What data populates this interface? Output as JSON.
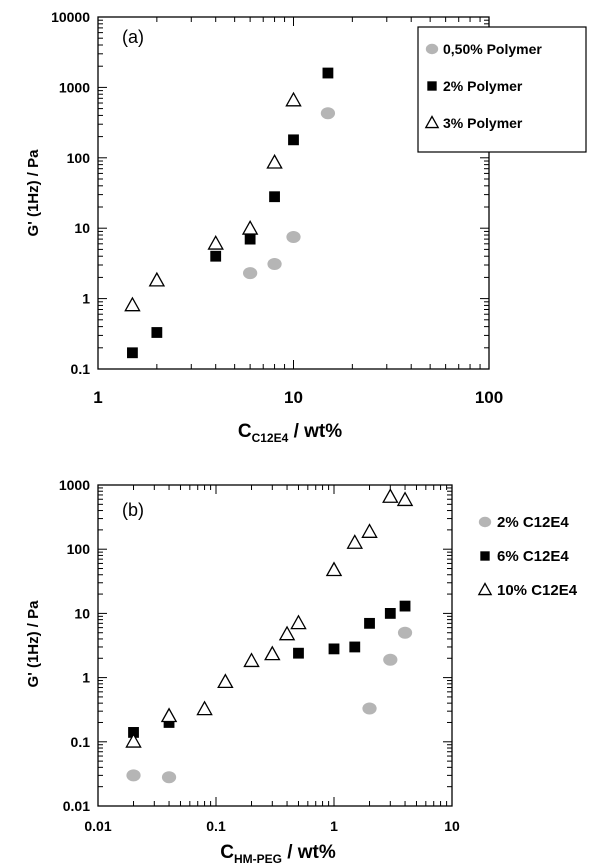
{
  "chart_data": [
    {
      "type": "scatter",
      "panel_label": "(a)",
      "xlabel": "C",
      "xlabel_sub": "C12E4",
      "xlabel_suffix": " / wt%",
      "ylabel": "G' (1Hz) / Pa",
      "xscale": "log",
      "yscale": "log",
      "xlim": [
        1,
        100
      ],
      "ylim": [
        0.1,
        10000
      ],
      "x_ticks": [
        "1",
        "10",
        "100"
      ],
      "y_ticks": [
        "0.1",
        "1",
        "10",
        "100",
        "1000",
        "10000"
      ],
      "legend_position": "top-right",
      "series": [
        {
          "name": "0,50% Polymer",
          "marker": "circle",
          "color": "#b5b5b5",
          "x": [
            6,
            8,
            10,
            15
          ],
          "y": [
            2.3,
            3.1,
            7.5,
            430
          ]
        },
        {
          "name": "2% Polymer",
          "marker": "square",
          "color": "#000000",
          "x": [
            1.5,
            2,
            4,
            6,
            8,
            10,
            15
          ],
          "y": [
            0.17,
            0.33,
            4.0,
            7.0,
            28,
            180,
            1600
          ]
        },
        {
          "name": "3% Polymer",
          "marker": "triangle-open",
          "color": "#000000",
          "x": [
            1.5,
            2,
            4,
            6,
            8,
            10
          ],
          "y": [
            0.8,
            1.8,
            6.0,
            9.8,
            85,
            650
          ]
        }
      ]
    },
    {
      "type": "scatter",
      "panel_label": "(b)",
      "xlabel": "C",
      "xlabel_sub": "HM-PEG",
      "xlabel_suffix": " / wt%",
      "ylabel": "G' (1Hz) / Pa",
      "xscale": "log",
      "yscale": "log",
      "xlim": [
        0.01,
        10
      ],
      "ylim": [
        0.01,
        1000
      ],
      "x_ticks": [
        "0.01",
        "0.1",
        "1",
        "10"
      ],
      "y_ticks": [
        "0.01",
        "0.1",
        "1",
        "10",
        "100",
        "1000"
      ],
      "legend_position": "outside-right",
      "series": [
        {
          "name": "2% C12E4",
          "marker": "circle",
          "color": "#b5b5b5",
          "x": [
            0.02,
            0.04,
            2,
            3,
            4
          ],
          "y": [
            0.03,
            0.028,
            0.33,
            1.9,
            5.0
          ]
        },
        {
          "name": "6% C12E4",
          "marker": "square",
          "color": "#000000",
          "x": [
            0.02,
            0.04,
            0.5,
            1,
            1.5,
            2,
            3,
            4
          ],
          "y": [
            0.14,
            0.2,
            2.4,
            2.8,
            3.0,
            7.0,
            10,
            13
          ]
        },
        {
          "name": "10% C12E4",
          "marker": "triangle-open",
          "color": "#000000",
          "x": [
            0.02,
            0.04,
            0.08,
            0.12,
            0.2,
            0.3,
            0.4,
            0.5,
            1,
            1.5,
            2,
            3,
            4
          ],
          "y": [
            0.1,
            0.25,
            0.32,
            0.85,
            1.8,
            2.3,
            4.7,
            7.0,
            47,
            125,
            185,
            650,
            580
          ]
        }
      ]
    }
  ]
}
